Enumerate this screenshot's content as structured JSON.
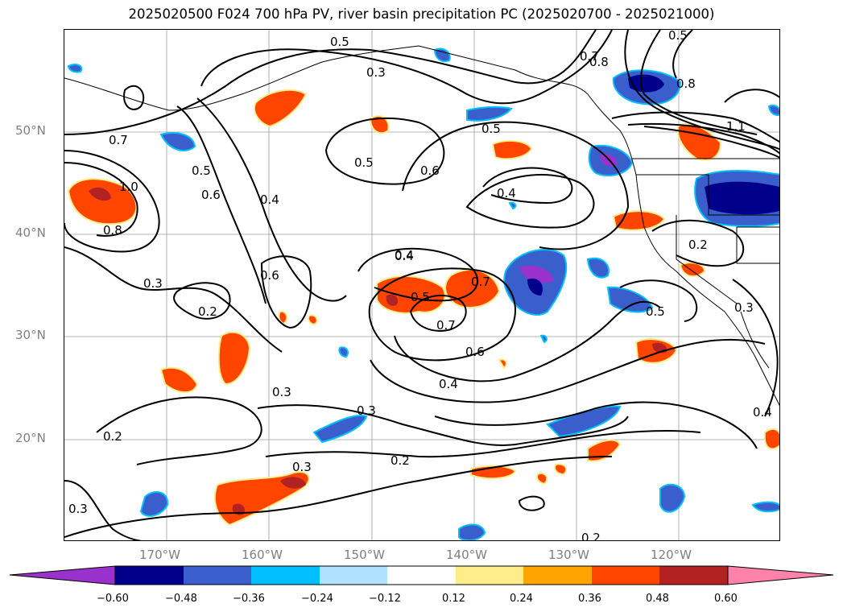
{
  "title": "2025020500 F024 700 hPa PV, river basin precipitation PC (2025020700 - 2025021000)",
  "lat_labels": [
    "50°N",
    "40°N",
    "30°N",
    "20°N"
  ],
  "lon_labels": [
    "170°W",
    "160°W",
    "150°W",
    "140°W",
    "130°W",
    "120°W"
  ],
  "colorbar": {
    "ticks": [
      "−0.60",
      "−0.48",
      "−0.36",
      "−0.24",
      "−0.12",
      "0.12",
      "0.24",
      "0.36",
      "0.48",
      "0.60"
    ],
    "colors": [
      "#9932cc",
      "#00008b",
      "#3a5fcd",
      "#00bfff",
      "#b0e2ff",
      "#ffffff",
      "#ffec8b",
      "#ffa500",
      "#ff4500",
      "#b22222",
      "#ff82ab"
    ]
  },
  "contour_labels": [
    "0.5",
    "0.3",
    "0.8",
    "0.5",
    "0.7",
    "0.8",
    "0.5",
    "0.5",
    "0.6",
    "0.4",
    "0.4",
    "0.7",
    "0.5",
    "0.6",
    "0.4",
    "0.8",
    "1.0",
    "0.3",
    "0.2",
    "0.6",
    "0.4",
    "0.5",
    "0.7",
    "0.7",
    "0.6",
    "0.2",
    "0.5",
    "0.3",
    "0.4",
    "0.3",
    "0.3",
    "0.2",
    "0.3",
    "0.3",
    "0.2",
    "0.4",
    "0.2",
    "1.1"
  ]
}
